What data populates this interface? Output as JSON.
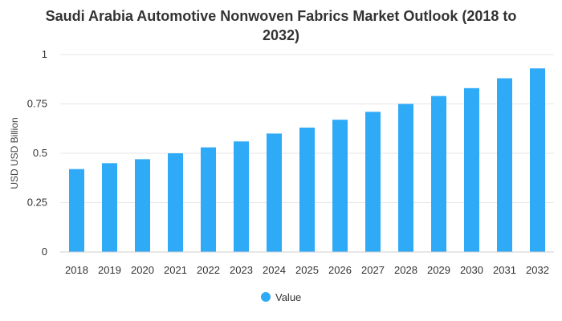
{
  "chart_data": {
    "type": "bar",
    "title_lines": [
      "Saudi Arabia Automotive Nonwoven Fabrics Market Outlook (2018 to",
      "2032)"
    ],
    "ylabel": "USD USD Billion",
    "xlabel": "",
    "categories": [
      "2018",
      "2019",
      "2020",
      "2021",
      "2022",
      "2023",
      "2024",
      "2025",
      "2026",
      "2027",
      "2028",
      "2029",
      "2030",
      "2031",
      "2032"
    ],
    "series": [
      {
        "name": "Value",
        "color": "#2eaaf7",
        "values": [
          0.42,
          0.45,
          0.47,
          0.5,
          0.53,
          0.56,
          0.6,
          0.63,
          0.67,
          0.71,
          0.75,
          0.79,
          0.83,
          0.88,
          0.93
        ]
      }
    ],
    "ylim": [
      0,
      1
    ],
    "yticks": [
      "0",
      "0.25",
      "0.5",
      "0.75",
      "1"
    ],
    "ytick_values": [
      0,
      0.25,
      0.5,
      0.75,
      1
    ],
    "grid": true,
    "legend_position": "bottom"
  }
}
